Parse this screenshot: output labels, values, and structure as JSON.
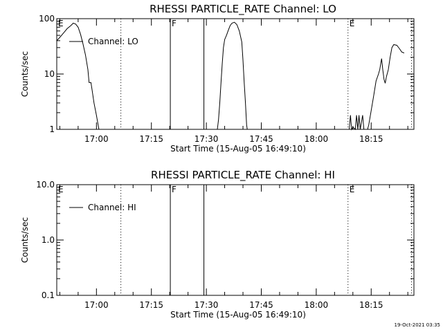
{
  "chart_data": [
    {
      "type": "line",
      "title": "RHESSI PARTICLE_RATE Channel: LO",
      "xlabel": "Start Time (15-Aug-05 16:49:10)",
      "ylabel": "Counts/sec",
      "y_scale": "log",
      "ylim": [
        1,
        100
      ],
      "xlim": [
        "16:49:10",
        "18:26:40"
      ],
      "x_ticks": [
        "17:00",
        "17:15",
        "17:30",
        "17:45",
        "18:00",
        "18:15"
      ],
      "y_ticks": [
        "1",
        "10",
        "100"
      ],
      "legend": {
        "placement": "top-left",
        "entries": [
          "Channel: LO"
        ]
      },
      "markers": [
        {
          "label": "E",
          "time": "16:49:10",
          "style": "dotted"
        },
        {
          "label": "",
          "time": "17:06:40",
          "style": "dotted"
        },
        {
          "label": "F",
          "time": "17:20:10",
          "style": "solid"
        },
        {
          "label": "",
          "time": "17:29:20",
          "style": "solid"
        },
        {
          "label": "E",
          "time": "18:08:40",
          "style": "dotted"
        },
        {
          "label": "",
          "time": "18:26:00",
          "style": "dotted"
        }
      ],
      "series": [
        {
          "segments": [
            [
              [
                "16:49:10",
                40
              ],
              [
                "16:50:00",
                46
              ],
              [
                "16:51:00",
                55
              ],
              [
                "16:52:00",
                66
              ],
              [
                "16:53:00",
                75
              ],
              [
                "16:53:40",
                83
              ],
              [
                "16:54:20",
                80
              ],
              [
                "16:55:00",
                70
              ],
              [
                "16:55:40",
                52
              ],
              [
                "16:56:20",
                35
              ],
              [
                "16:57:00",
                22
              ],
              [
                "16:57:40",
                12
              ],
              [
                "16:58:00",
                7
              ],
              [
                "16:58:30",
                7
              ],
              [
                "16:58:50",
                5
              ],
              [
                "16:59:20",
                3
              ],
              [
                "17:00:00",
                1.8
              ],
              [
                "17:00:40",
                1
              ]
            ],
            [
              [
                "17:33:00",
                1
              ],
              [
                "17:33:20",
                1.5
              ],
              [
                "17:33:40",
                3
              ],
              [
                "17:34:00",
                7
              ],
              [
                "17:34:20",
                15
              ],
              [
                "17:34:40",
                30
              ],
              [
                "17:35:00",
                42
              ],
              [
                "17:35:30",
                50
              ],
              [
                "17:36:00",
                62
              ],
              [
                "17:36:30",
                75
              ],
              [
                "17:37:00",
                83
              ],
              [
                "17:37:40",
                86
              ],
              [
                "17:38:20",
                78
              ],
              [
                "17:39:00",
                60
              ],
              [
                "17:39:40",
                38
              ],
              [
                "17:40:00",
                18
              ],
              [
                "17:40:20",
                7
              ],
              [
                "17:40:40",
                3
              ],
              [
                "17:41:00",
                1.2
              ],
              [
                "17:41:10",
                1
              ]
            ],
            [
              [
                "18:09:00",
                1
              ],
              [
                "18:09:20",
                1.8
              ],
              [
                "18:09:40",
                1
              ],
              [
                "18:10:00",
                1.1
              ],
              [
                "18:10:40",
                1
              ],
              [
                "18:11:00",
                1.8
              ],
              [
                "18:11:20",
                1
              ],
              [
                "18:11:40",
                1.8
              ],
              [
                "18:12:00",
                1
              ],
              [
                "18:12:40",
                1.8
              ],
              [
                "18:13:00",
                1
              ],
              [
                "18:14:00",
                1
              ],
              [
                "18:14:20",
                1.2
              ],
              [
                "18:15:00",
                2.2
              ],
              [
                "18:15:40",
                4
              ],
              [
                "18:16:20",
                7.5
              ],
              [
                "18:17:00",
                10
              ],
              [
                "18:17:20",
                12
              ],
              [
                "18:17:50",
                19
              ],
              [
                "18:18:10",
                12
              ],
              [
                "18:18:30",
                8
              ],
              [
                "18:18:50",
                6.8
              ],
              [
                "18:19:10",
                9
              ],
              [
                "18:19:40",
                12
              ],
              [
                "18:20:10",
                20
              ],
              [
                "18:20:40",
                30
              ],
              [
                "18:21:10",
                34
              ],
              [
                "18:22:00",
                33
              ],
              [
                "18:22:40",
                29
              ],
              [
                "18:23:20",
                25
              ],
              [
                "18:24:00",
                24
              ]
            ]
          ]
        }
      ]
    },
    {
      "type": "line",
      "title": "RHESSI PARTICLE_RATE Channel: HI",
      "xlabel": "Start Time (15-Aug-05 16:49:10)",
      "ylabel": "Counts/sec",
      "y_scale": "log",
      "ylim": [
        0.1,
        10
      ],
      "xlim": [
        "16:49:10",
        "18:26:40"
      ],
      "x_ticks": [
        "17:00",
        "17:15",
        "17:30",
        "17:45",
        "18:00",
        "18:15"
      ],
      "y_ticks": [
        "0.1",
        "1.0",
        "10.0"
      ],
      "legend": {
        "placement": "top-left",
        "entries": [
          "Channel: HI"
        ]
      },
      "markers": [
        {
          "label": "E",
          "time": "16:49:10",
          "style": "dotted"
        },
        {
          "label": "",
          "time": "17:06:40",
          "style": "dotted"
        },
        {
          "label": "F",
          "time": "17:20:10",
          "style": "solid"
        },
        {
          "label": "",
          "time": "17:29:20",
          "style": "solid"
        },
        {
          "label": "E",
          "time": "18:08:40",
          "style": "dotted"
        },
        {
          "label": "",
          "time": "18:26:00",
          "style": "dotted"
        }
      ],
      "series": [
        {
          "segments": []
        }
      ]
    }
  ],
  "footer": {
    "timestamp": "19-Oct-2021 03:35"
  }
}
